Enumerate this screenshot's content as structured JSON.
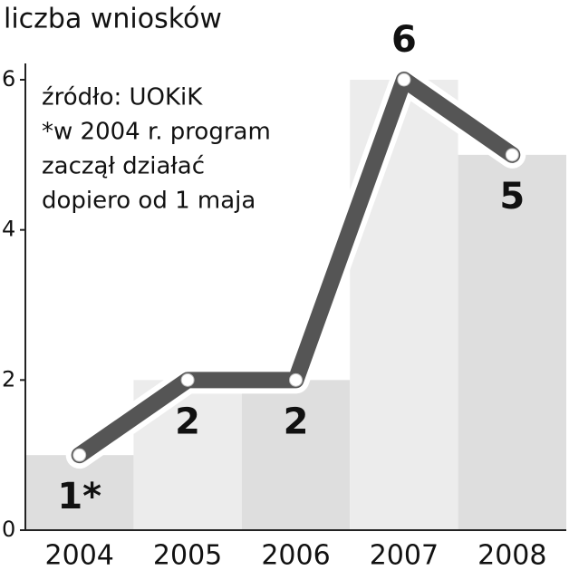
{
  "chart_data": {
    "type": "line",
    "title": "liczba wniosków",
    "annotations": [
      "źródło: UOKiK",
      "*w 2004 r. program",
      "zaczął działać",
      "dopiero od 1 maja"
    ],
    "categories": [
      "2004",
      "2005",
      "2006",
      "2007",
      "2008"
    ],
    "values": [
      1,
      2,
      2,
      6,
      5
    ],
    "value_labels": [
      "1*",
      "2",
      "2",
      "6",
      "5"
    ],
    "color": "#555555",
    "bar_colors": [
      "#dedede",
      "#ececec",
      "#dedede",
      "#ececec",
      "#dedede"
    ],
    "ylim": [
      0,
      6
    ],
    "yticks": [
      0,
      2,
      4,
      6
    ]
  }
}
